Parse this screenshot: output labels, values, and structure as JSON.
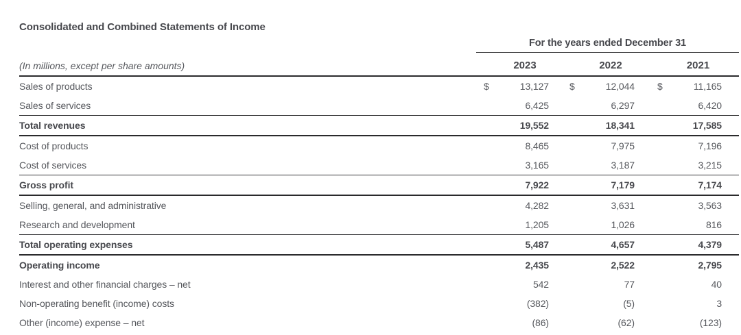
{
  "title": "Consolidated and Combined Statements of Income",
  "table": {
    "period_header": "For the years ended December 31",
    "units_note": "(In millions, except per share amounts)",
    "years": [
      "2023",
      "2022",
      "2021"
    ],
    "currency_symbol": "$",
    "rows": [
      {
        "label": "Sales of products",
        "values": [
          "13,127",
          "12,044",
          "11,165"
        ],
        "dollar": true,
        "bold": false,
        "total": false
      },
      {
        "label": "Sales of services",
        "values": [
          "6,425",
          "6,297",
          "6,420"
        ],
        "dollar": false,
        "bold": false,
        "total": false
      },
      {
        "label": "Total revenues",
        "values": [
          "19,552",
          "18,341",
          "17,585"
        ],
        "dollar": false,
        "bold": true,
        "total": true
      },
      {
        "label": "Cost of products",
        "values": [
          "8,465",
          "7,975",
          "7,196"
        ],
        "dollar": false,
        "bold": false,
        "total": false
      },
      {
        "label": "Cost of services",
        "values": [
          "3,165",
          "3,187",
          "3,215"
        ],
        "dollar": false,
        "bold": false,
        "total": false
      },
      {
        "label": "Gross profit",
        "values": [
          "7,922",
          "7,179",
          "7,174"
        ],
        "dollar": false,
        "bold": true,
        "total": true
      },
      {
        "label": "Selling, general, and administrative",
        "values": [
          "4,282",
          "3,631",
          "3,563"
        ],
        "dollar": false,
        "bold": false,
        "total": false
      },
      {
        "label": "Research and development",
        "values": [
          "1,205",
          "1,026",
          "816"
        ],
        "dollar": false,
        "bold": false,
        "total": false
      },
      {
        "label": "Total operating expenses",
        "values": [
          "5,487",
          "4,657",
          "4,379"
        ],
        "dollar": false,
        "bold": true,
        "total": true
      },
      {
        "label": "Operating income",
        "values": [
          "2,435",
          "2,522",
          "2,795"
        ],
        "dollar": false,
        "bold": true,
        "total": false
      },
      {
        "label": "Interest and other financial charges – net",
        "values": [
          "542",
          "77",
          "40"
        ],
        "dollar": false,
        "bold": false,
        "total": false
      },
      {
        "label": "Non-operating benefit (income) costs",
        "values": [
          "(382)",
          "(5)",
          "3"
        ],
        "dollar": false,
        "bold": false,
        "total": false
      },
      {
        "label": "Other (income) expense – net",
        "values": [
          "(86)",
          "(62)",
          "(123)"
        ],
        "dollar": false,
        "bold": false,
        "total": false
      }
    ]
  },
  "colors": {
    "background": "#ffffff",
    "text_regular": "#55575c",
    "text_bold": "#47484d",
    "rule_thin": "#323234",
    "rule_thick": "#2a2a2c"
  }
}
